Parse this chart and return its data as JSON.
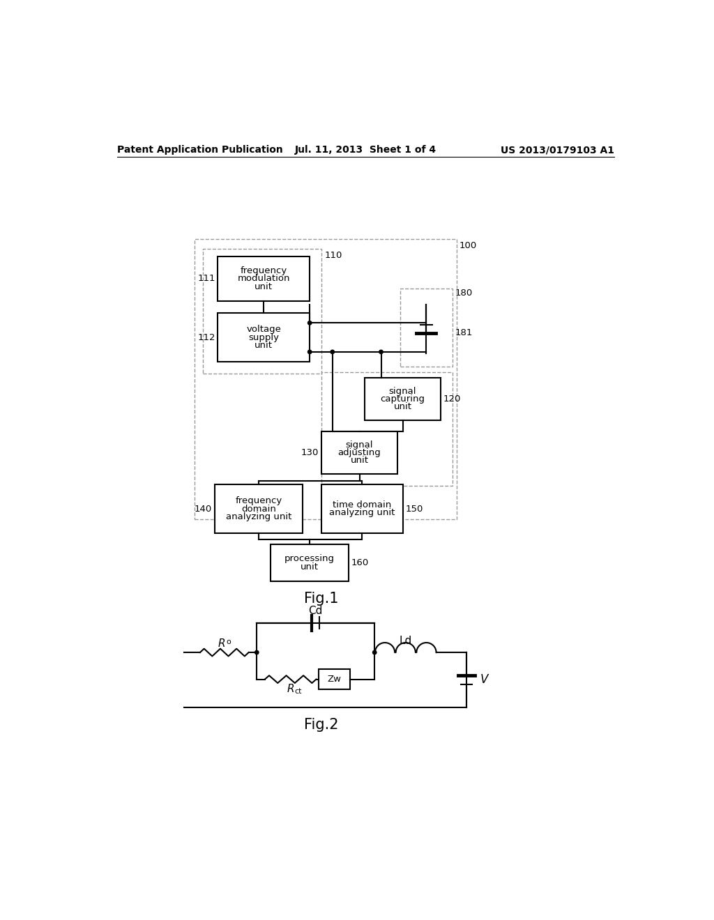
{
  "bg_color": "#ffffff",
  "header_left": "Patent Application Publication",
  "header_center": "Jul. 11, 2013  Sheet 1 of 4",
  "header_right": "US 2013/0179103 A1",
  "fig1_label": "Fig.1",
  "fig2_label": "Fig.2"
}
